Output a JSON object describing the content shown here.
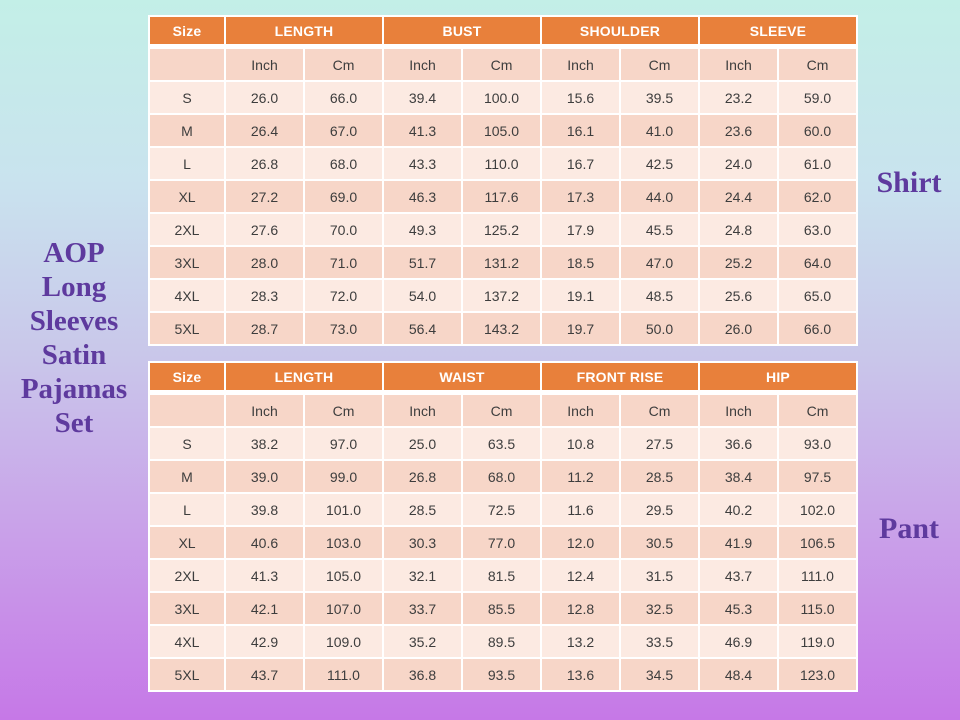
{
  "title": {
    "lines": [
      "AOP",
      "Long",
      "Sleeves",
      "Satin",
      "Pajamas",
      "Set"
    ]
  },
  "side_labels": {
    "shirt": "Shirt",
    "pant": "Pant"
  },
  "colors": {
    "header_bg": "#e8803b",
    "header_text": "#ffffff",
    "row_dark": "#f7d6c8",
    "row_light": "#fceae2",
    "cell_text": "#3d3d3d",
    "title_text": "#5e3a9e",
    "bg_gradient_top": "#c3efe7",
    "bg_gradient_bottom": "#c678e7"
  },
  "tables": [
    {
      "name": "shirt",
      "size_header": "Size",
      "groups": [
        "LENGTH",
        "BUST",
        "SHOULDER",
        "SLEEVE"
      ],
      "units": [
        "Inch",
        "Cm"
      ],
      "rows": [
        {
          "size": "S",
          "values": [
            "26.0",
            "66.0",
            "39.4",
            "100.0",
            "15.6",
            "39.5",
            "23.2",
            "59.0"
          ]
        },
        {
          "size": "M",
          "values": [
            "26.4",
            "67.0",
            "41.3",
            "105.0",
            "16.1",
            "41.0",
            "23.6",
            "60.0"
          ]
        },
        {
          "size": "L",
          "values": [
            "26.8",
            "68.0",
            "43.3",
            "110.0",
            "16.7",
            "42.5",
            "24.0",
            "61.0"
          ]
        },
        {
          "size": "XL",
          "values": [
            "27.2",
            "69.0",
            "46.3",
            "117.6",
            "17.3",
            "44.0",
            "24.4",
            "62.0"
          ]
        },
        {
          "size": "2XL",
          "values": [
            "27.6",
            "70.0",
            "49.3",
            "125.2",
            "17.9",
            "45.5",
            "24.8",
            "63.0"
          ]
        },
        {
          "size": "3XL",
          "values": [
            "28.0",
            "71.0",
            "51.7",
            "131.2",
            "18.5",
            "47.0",
            "25.2",
            "64.0"
          ]
        },
        {
          "size": "4XL",
          "values": [
            "28.3",
            "72.0",
            "54.0",
            "137.2",
            "19.1",
            "48.5",
            "25.6",
            "65.0"
          ]
        },
        {
          "size": "5XL",
          "values": [
            "28.7",
            "73.0",
            "56.4",
            "143.2",
            "19.7",
            "50.0",
            "26.0",
            "66.0"
          ]
        }
      ]
    },
    {
      "name": "pant",
      "size_header": "Size",
      "groups": [
        "LENGTH",
        "WAIST",
        "FRONT RISE",
        "HIP"
      ],
      "units": [
        "Inch",
        "Cm"
      ],
      "rows": [
        {
          "size": "S",
          "values": [
            "38.2",
            "97.0",
            "25.0",
            "63.5",
            "10.8",
            "27.5",
            "36.6",
            "93.0"
          ]
        },
        {
          "size": "M",
          "values": [
            "39.0",
            "99.0",
            "26.8",
            "68.0",
            "11.2",
            "28.5",
            "38.4",
            "97.5"
          ]
        },
        {
          "size": "L",
          "values": [
            "39.8",
            "101.0",
            "28.5",
            "72.5",
            "11.6",
            "29.5",
            "40.2",
            "102.0"
          ]
        },
        {
          "size": "XL",
          "values": [
            "40.6",
            "103.0",
            "30.3",
            "77.0",
            "12.0",
            "30.5",
            "41.9",
            "106.5"
          ]
        },
        {
          "size": "2XL",
          "values": [
            "41.3",
            "105.0",
            "32.1",
            "81.5",
            "12.4",
            "31.5",
            "43.7",
            "111.0"
          ]
        },
        {
          "size": "3XL",
          "values": [
            "42.1",
            "107.0",
            "33.7",
            "85.5",
            "12.8",
            "32.5",
            "45.3",
            "115.0"
          ]
        },
        {
          "size": "4XL",
          "values": [
            "42.9",
            "109.0",
            "35.2",
            "89.5",
            "13.2",
            "33.5",
            "46.9",
            "119.0"
          ]
        },
        {
          "size": "5XL",
          "values": [
            "43.7",
            "111.0",
            "36.8",
            "93.5",
            "13.6",
            "34.5",
            "48.4",
            "123.0"
          ]
        }
      ]
    }
  ]
}
